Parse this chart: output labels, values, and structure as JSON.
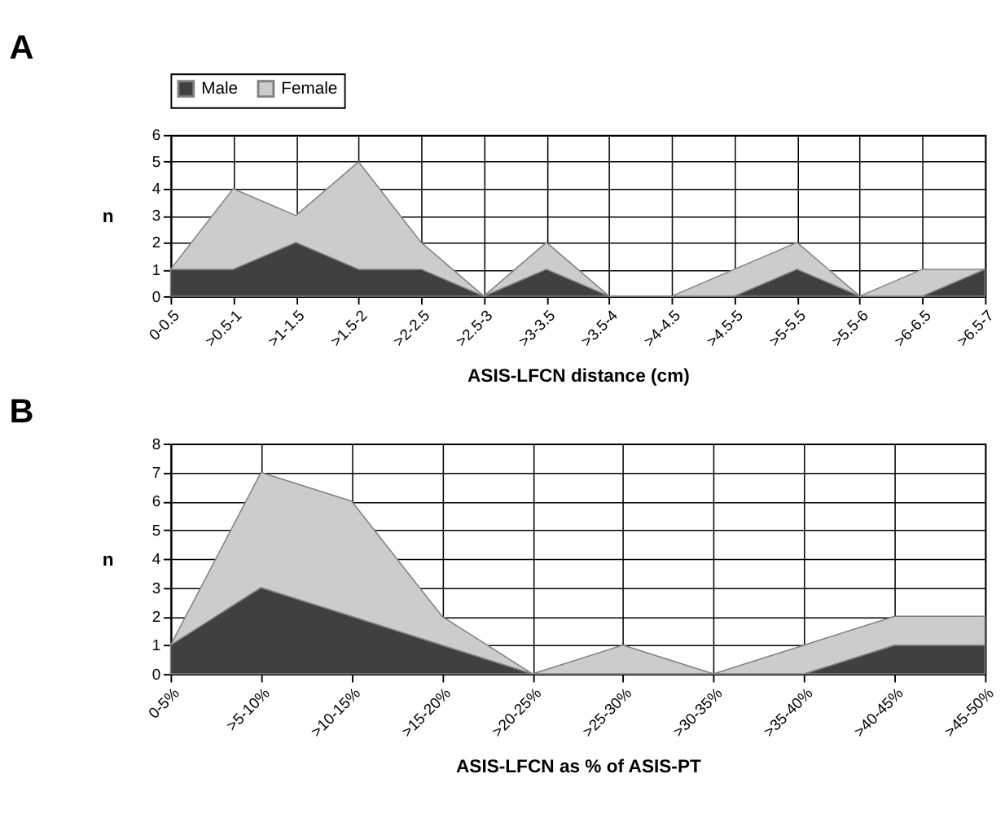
{
  "chart_data": [
    {
      "type": "area",
      "title": "A",
      "xlabel": "ASIS-LFCN distance (cm)",
      "ylabel": "n",
      "stacked": true,
      "legend": "top",
      "grid": true,
      "categories": [
        "0-0.5",
        ">0.5-1",
        ">1-1.5",
        ">1.5-2",
        ">2-2.5",
        ">2.5-3",
        ">3-3.5",
        ">3.5-4",
        ">4-4.5",
        ">4.5-5",
        ">5-5.5",
        ">5.5-6",
        ">6-6.5",
        ">6.5-7"
      ],
      "ylim": [
        0,
        6
      ],
      "yticks": [
        0,
        1,
        2,
        3,
        4,
        5,
        6
      ],
      "series": [
        {
          "name": "Male",
          "color": "#404040",
          "values": [
            1,
            1,
            2,
            1,
            1,
            0,
            1,
            0,
            0,
            0,
            1,
            0,
            0,
            1
          ]
        },
        {
          "name": "Female",
          "color": "#cccccc",
          "values": [
            0,
            3,
            1,
            4,
            1,
            0,
            1,
            0,
            0,
            1,
            1,
            0,
            1,
            0
          ]
        }
      ]
    },
    {
      "type": "area",
      "title": "B",
      "xlabel": "ASIS-LFCN as % of ASIS-PT",
      "ylabel": "n",
      "stacked": true,
      "grid": true,
      "categories": [
        "0-5%",
        ">5-10%",
        ">10-15%",
        ">15-20%",
        ">20-25%",
        ">25-30%",
        ">30-35%",
        ">35-40%",
        ">40-45%",
        ">45-50%"
      ],
      "ylim": [
        0,
        8
      ],
      "yticks": [
        0,
        1,
        2,
        3,
        4,
        5,
        6,
        7,
        8
      ],
      "series": [
        {
          "color": "#404040",
          "values": [
            1,
            3,
            2,
            1,
            0,
            0,
            0,
            0,
            1,
            1
          ]
        },
        {
          "color": "#cccccc",
          "values": [
            0,
            4,
            4,
            1,
            0,
            1,
            0,
            1,
            1,
            1
          ]
        }
      ]
    }
  ]
}
